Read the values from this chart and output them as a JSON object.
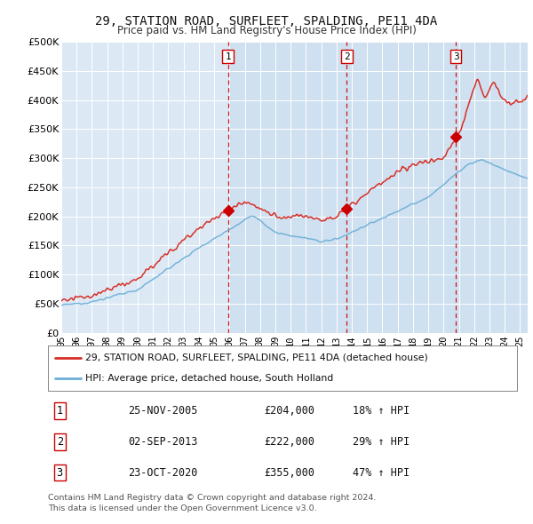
{
  "title": "29, STATION ROAD, SURFLEET, SPALDING, PE11 4DA",
  "subtitle": "Price paid vs. HM Land Registry's House Price Index (HPI)",
  "plot_bg_color": "#dce9f5",
  "hpi_color": "#6baed6",
  "price_color": "#d73027",
  "dashed_color": "#cc0000",
  "shade_color": "#c5d9ed",
  "ylim": [
    0,
    500000
  ],
  "yticks": [
    0,
    50000,
    100000,
    150000,
    200000,
    250000,
    300000,
    350000,
    400000,
    450000,
    500000
  ],
  "ytick_labels": [
    "£0",
    "£50K",
    "£100K",
    "£150K",
    "£200K",
    "£250K",
    "£300K",
    "£350K",
    "£400K",
    "£450K",
    "£500K"
  ],
  "transactions": [
    {
      "label": "1",
      "date": "25-NOV-2005",
      "price": 204000,
      "pct": "18%",
      "x": 2005.9
    },
    {
      "label": "2",
      "date": "02-SEP-2013",
      "price": 222000,
      "pct": "29%",
      "x": 2013.67
    },
    {
      "label": "3",
      "date": "23-OCT-2020",
      "price": 355000,
      "pct": "47%",
      "x": 2020.8
    }
  ],
  "legend_line1": "29, STATION ROAD, SURFLEET, SPALDING, PE11 4DA (detached house)",
  "legend_line2": "HPI: Average price, detached house, South Holland",
  "footer1": "Contains HM Land Registry data © Crown copyright and database right 2024.",
  "footer2": "This data is licensed under the Open Government Licence v3.0.",
  "xmin": 1995.0,
  "xmax": 2025.5
}
